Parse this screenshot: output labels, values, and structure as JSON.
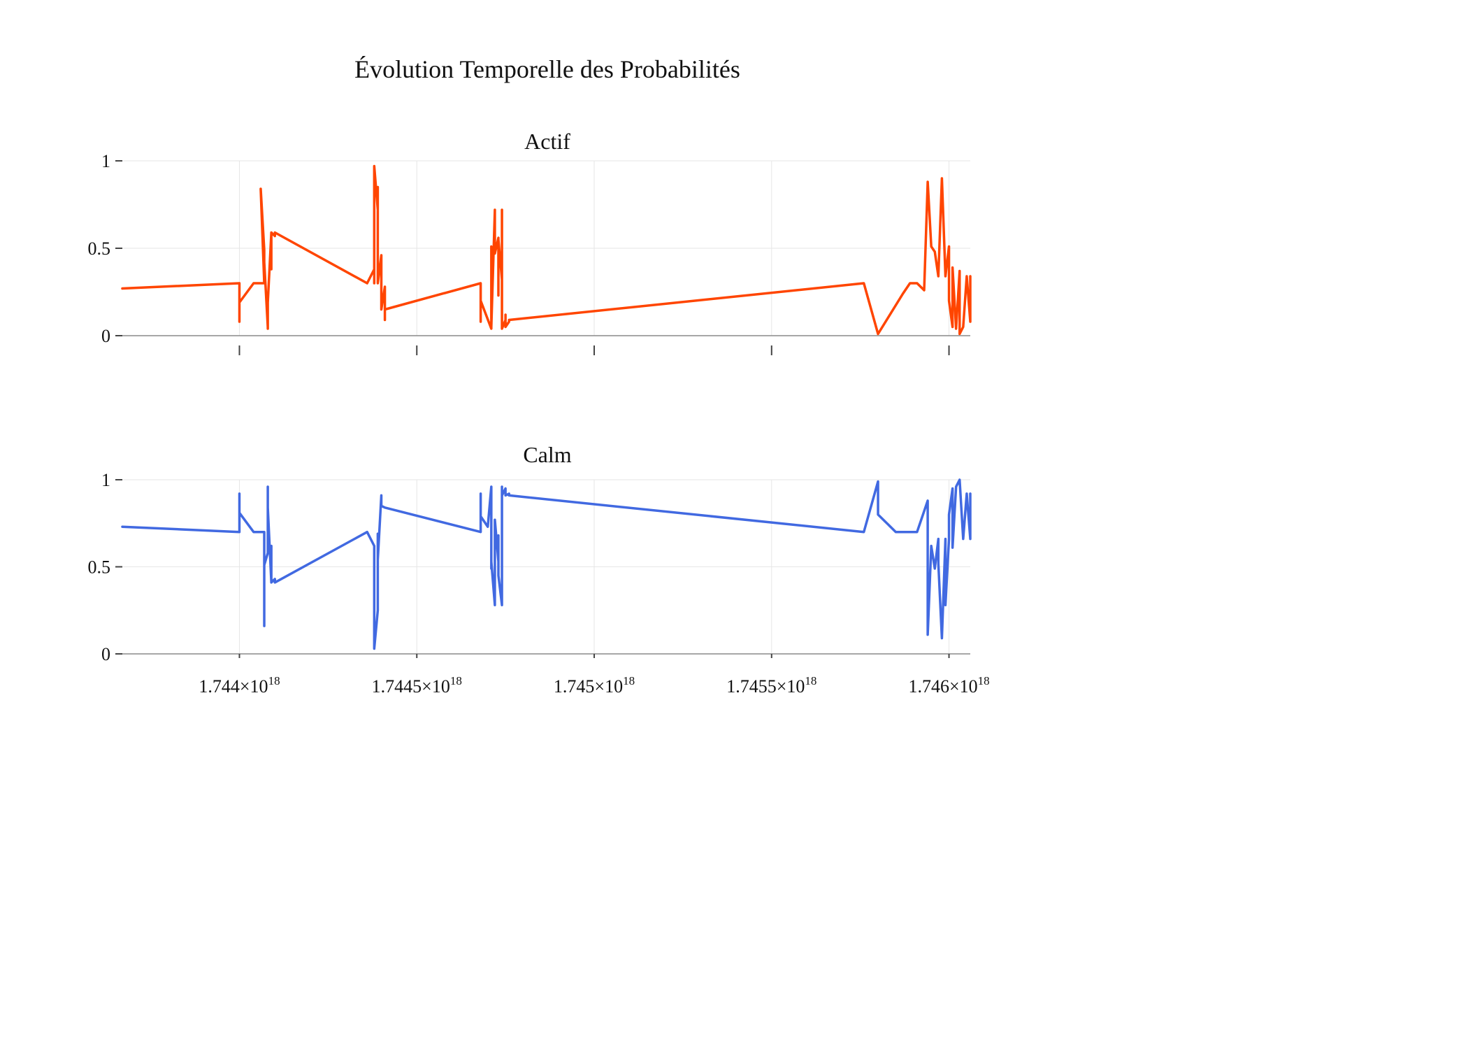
{
  "chart_data": {
    "type": "line",
    "title": "Évolution Temporelle des Probabilités",
    "x_tick_values": [
      1.744e+18,
      1.7445e+18,
      1.745e+18,
      1.7455e+18,
      1.746e+18
    ],
    "x_tick_labels": [
      {
        "mantissa": "1.744",
        "exp": "18"
      },
      {
        "mantissa": "1.7445",
        "exp": "18"
      },
      {
        "mantissa": "1.745",
        "exp": "18"
      },
      {
        "mantissa": "1.7455",
        "exp": "18"
      },
      {
        "mantissa": "1.746",
        "exp": "18"
      }
    ],
    "xlim": [
      1.74367e+18,
      1.74606e+18
    ],
    "panels": [
      {
        "name": "Actif",
        "color": "#FF4500",
        "ylim": [
          0,
          1
        ],
        "y_ticks": [
          0,
          0.5,
          1
        ],
        "y_tick_labels": [
          "0",
          "0.5",
          "1"
        ],
        "x": [
          1.74367e+18,
          1.744e+18,
          1.744e+18,
          1.744e+18,
          1.74404e+18,
          1.74407e+18,
          1.74406e+18,
          1.74407e+18,
          1.74407e+18,
          1.74407e+18,
          1.74408e+18,
          1.74408e+18,
          1.74408e+18,
          1.74409e+18,
          1.74409e+18,
          1.74409e+18,
          1.74409e+18,
          1.7441e+18,
          1.7441e+18,
          1.74436e+18,
          1.74438e+18,
          1.74438e+18,
          1.74438e+18,
          1.74438e+18,
          1.74438e+18,
          1.74439e+18,
          1.74439e+18,
          1.74439e+18,
          1.7444e+18,
          1.7444e+18,
          1.7444e+18,
          1.74441e+18,
          1.74441e+18,
          1.74441e+18,
          1.74468e+18,
          1.74468e+18,
          1.74468e+18,
          1.74471e+18,
          1.74471e+18,
          1.74471e+18,
          1.74472e+18,
          1.74472e+18,
          1.74473e+18,
          1.74473e+18,
          1.74473e+18,
          1.74474e+18,
          1.74474e+18,
          1.74474e+18,
          1.74475e+18,
          1.74475e+18,
          1.74475e+18,
          1.74476e+18,
          1.74476e+18,
          1.74576e+18,
          1.7458e+18,
          1.74587e+18,
          1.74589e+18,
          1.74591e+18,
          1.74593e+18,
          1.74594e+18,
          1.74595e+18,
          1.74596e+18,
          1.74597e+18,
          1.74598e+18,
          1.74599e+18,
          1.746e+18,
          1.746e+18,
          1.746e+18,
          1.74601e+18,
          1.74601e+18,
          1.74602e+18,
          1.74603e+18,
          1.74603e+18,
          1.74604e+18,
          1.74605e+18,
          1.74606e+18,
          1.74606e+18,
          1.74606e+18
        ],
        "y": [
          0.27,
          0.3,
          0.08,
          0.19,
          0.3,
          0.3,
          0.84,
          0.49,
          0.38,
          0.42,
          0.05,
          0.04,
          0.19,
          0.59,
          0.38,
          0.52,
          0.59,
          0.57,
          0.59,
          0.3,
          0.38,
          0.3,
          0.93,
          0.8,
          0.97,
          0.72,
          0.85,
          0.3,
          0.46,
          0.31,
          0.15,
          0.28,
          0.09,
          0.15,
          0.3,
          0.08,
          0.2,
          0.04,
          0.51,
          0.05,
          0.72,
          0.47,
          0.56,
          0.23,
          0.55,
          0.32,
          0.72,
          0.04,
          0.09,
          0.12,
          0.05,
          0.08,
          0.09,
          0.3,
          0.01,
          0.24,
          0.3,
          0.3,
          0.26,
          0.88,
          0.51,
          0.48,
          0.34,
          0.9,
          0.34,
          0.51,
          0.3,
          0.2,
          0.05,
          0.39,
          0.04,
          0.37,
          0.01,
          0.05,
          0.34,
          0.08,
          0.34,
          0.08
        ]
      },
      {
        "name": "Calm",
        "color": "#4169E1",
        "ylim": [
          0,
          1
        ],
        "y_ticks": [
          0,
          0.5,
          1
        ],
        "y_tick_labels": [
          "0",
          "0.5",
          "1"
        ],
        "x": [
          1.74367e+18,
          1.744e+18,
          1.744e+18,
          1.744e+18,
          1.74404e+18,
          1.74407e+18,
          1.74407e+18,
          1.74407e+18,
          1.74408e+18,
          1.74408e+18,
          1.74408e+18,
          1.74408e+18,
          1.74409e+18,
          1.74409e+18,
          1.74409e+18,
          1.74409e+18,
          1.7441e+18,
          1.7441e+18,
          1.74436e+18,
          1.74438e+18,
          1.74438e+18,
          1.74438e+18,
          1.74438e+18,
          1.74439e+18,
          1.74439e+18,
          1.74439e+18,
          1.7444e+18,
          1.7444e+18,
          1.7444e+18,
          1.74441e+18,
          1.74441e+18,
          1.74468e+18,
          1.74468e+18,
          1.74468e+18,
          1.7447e+18,
          1.74471e+18,
          1.74471e+18,
          1.74471e+18,
          1.74471e+18,
          1.74472e+18,
          1.74472e+18,
          1.74473e+18,
          1.74473e+18,
          1.74473e+18,
          1.74474e+18,
          1.74474e+18,
          1.74474e+18,
          1.74475e+18,
          1.74475e+18,
          1.74475e+18,
          1.74476e+18,
          1.74476e+18,
          1.74576e+18,
          1.7458e+18,
          1.7458e+18,
          1.74582e+18,
          1.74585e+18,
          1.74591e+18,
          1.74594e+18,
          1.74594e+18,
          1.74595e+18,
          1.74596e+18,
          1.74597e+18,
          1.74597e+18,
          1.74598e+18,
          1.74599e+18,
          1.74599e+18,
          1.746e+18,
          1.746e+18,
          1.74601e+18,
          1.74601e+18,
          1.74602e+18,
          1.74603e+18,
          1.74604e+18,
          1.74605e+18,
          1.74606e+18,
          1.74606e+18
        ],
        "y": [
          0.73,
          0.7,
          0.92,
          0.81,
          0.7,
          0.7,
          0.16,
          0.51,
          0.58,
          0.96,
          0.81,
          0.84,
          0.41,
          0.62,
          0.46,
          0.41,
          0.43,
          0.41,
          0.7,
          0.62,
          0.07,
          0.25,
          0.03,
          0.25,
          0.69,
          0.54,
          0.91,
          0.85,
          0.85,
          0.84,
          0.84,
          0.7,
          0.92,
          0.79,
          0.73,
          0.96,
          0.49,
          0.96,
          0.53,
          0.28,
          0.77,
          0.53,
          0.68,
          0.45,
          0.28,
          0.96,
          0.91,
          0.95,
          0.91,
          0.91,
          0.92,
          0.91,
          0.7,
          0.99,
          0.8,
          0.76,
          0.7,
          0.7,
          0.88,
          0.11,
          0.62,
          0.49,
          0.66,
          0.52,
          0.09,
          0.66,
          0.28,
          0.66,
          0.8,
          0.95,
          0.61,
          0.96,
          1.0,
          0.66,
          0.92,
          0.66,
          0.92
        ]
      }
    ]
  }
}
